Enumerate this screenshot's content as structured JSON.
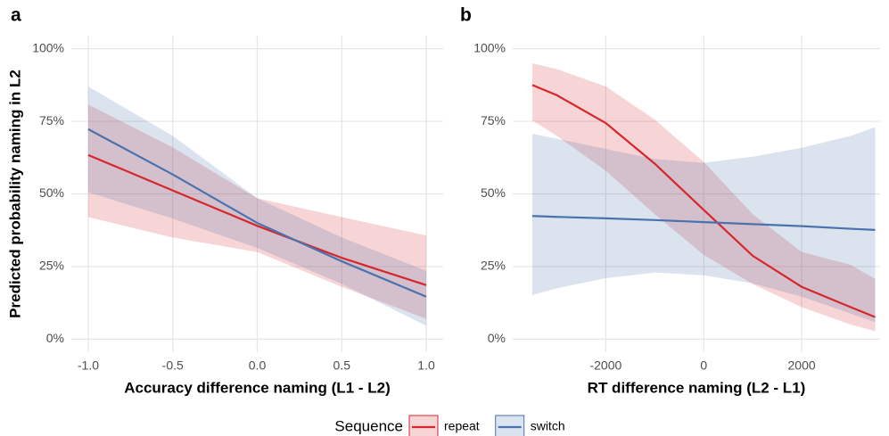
{
  "chart_data": [
    {
      "type": "line",
      "label": "a",
      "x_label": "Accuracy difference naming (L1 - L2)",
      "y_label": "Predicted probability naming in L2",
      "x": [
        -1,
        -0.5,
        0,
        0.5,
        1
      ],
      "xlim": [
        -1.1,
        1.1
      ],
      "xticks": [
        {
          "value": -1,
          "label": "-1.0"
        },
        {
          "value": -0.5,
          "label": "-0.5"
        },
        {
          "value": 0,
          "label": "0.0"
        },
        {
          "value": 0.5,
          "label": "0.5"
        },
        {
          "value": 1,
          "label": "1.0"
        }
      ],
      "ylim": [
        -4.5,
        104.5
      ],
      "yticks": [
        {
          "value": 0,
          "label": "0%"
        },
        {
          "value": 25,
          "label": "25%"
        },
        {
          "value": 50,
          "label": "50%"
        },
        {
          "value": 75,
          "label": "75%"
        },
        {
          "value": 100,
          "label": "100%"
        }
      ],
      "grid": true,
      "series": [
        {
          "name": "repeat",
          "color": "#d7262c",
          "values": [
            63.4,
            51.2,
            39,
            28,
            18.6
          ],
          "lower": [
            42,
            35,
            30,
            18,
            7
          ],
          "upper": [
            80.8,
            66,
            48.5,
            42,
            35.7
          ]
        },
        {
          "name": "switch",
          "color": "#4a72ae",
          "values": [
            72.3,
            56.7,
            40,
            26.8,
            14.6
          ],
          "lower": [
            50.6,
            41.5,
            31.4,
            19,
            4.6
          ],
          "upper": [
            87,
            70,
            48.5,
            35,
            23.5
          ]
        }
      ]
    },
    {
      "type": "line",
      "label": "b",
      "x_label": "RT difference naming (L2 - L1)",
      "x": [
        -3500,
        -3000,
        -2000,
        -1000,
        0,
        1000,
        2000,
        3000,
        3500
      ],
      "xlim": [
        -3900,
        3600
      ],
      "xticks": [
        -2000,
        0,
        2000
      ],
      "ylim": [
        -4.5,
        104.5
      ],
      "yticks": [
        {
          "value": 0,
          "label": "0%"
        },
        {
          "value": 25,
          "label": "25%"
        },
        {
          "value": 50,
          "label": "50%"
        },
        {
          "value": 75,
          "label": "75%"
        },
        {
          "value": 100,
          "label": "100%"
        }
      ],
      "grid": true,
      "series": [
        {
          "name": "repeat",
          "color": "#d7262c",
          "values": [
            87.5,
            84,
            74.4,
            60.4,
            44.5,
            28.7,
            18,
            11,
            7.6
          ],
          "lower": [
            75.3,
            70,
            58,
            43,
            29,
            19,
            11,
            5,
            2.7
          ],
          "upper": [
            95,
            93,
            87,
            75.6,
            61,
            43,
            30,
            25.6,
            20.7
          ]
        },
        {
          "name": "switch",
          "color": "#4a72ae",
          "values": [
            42.4,
            42.1,
            41.6,
            41,
            40.3,
            39.6,
            38.9,
            38,
            37.6
          ],
          "lower": [
            15.2,
            17.5,
            21,
            22.9,
            22,
            19.2,
            14.6,
            8.8,
            5.8
          ],
          "upper": [
            70.7,
            69,
            65.5,
            62,
            60.7,
            62.8,
            65.9,
            70,
            73
          ]
        }
      ]
    }
  ],
  "legend": {
    "title": "Sequence"
  }
}
